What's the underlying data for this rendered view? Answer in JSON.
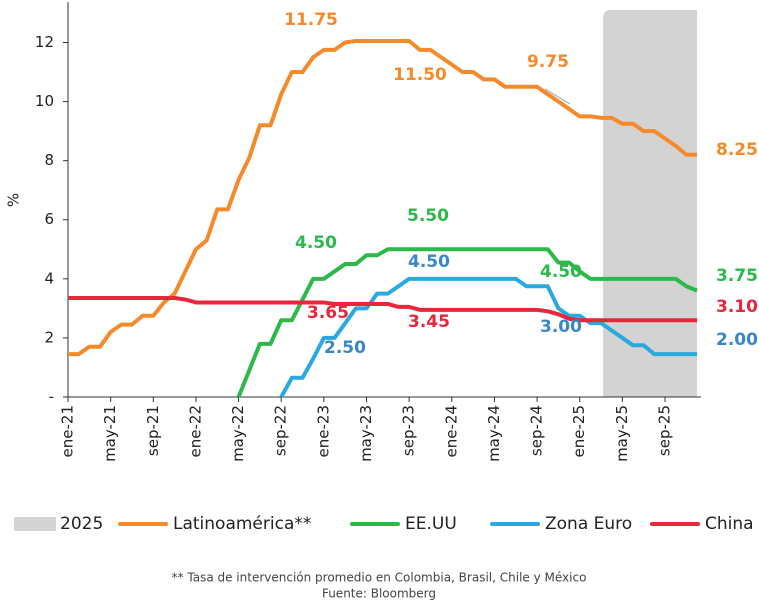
{
  "chart_data": {
    "type": "line",
    "y_label": "%",
    "categories": [
      "ene-21",
      null,
      null,
      null,
      "may-21",
      null,
      null,
      null,
      "sep-21",
      null,
      null,
      null,
      "ene-22",
      null,
      null,
      null,
      "may-22",
      null,
      null,
      null,
      "sep-22",
      null,
      null,
      null,
      "ene-23",
      null,
      null,
      null,
      "may-23",
      null,
      null,
      null,
      "sep-23",
      null,
      null,
      null,
      "ene-24",
      null,
      null,
      null,
      "may-24",
      null,
      null,
      null,
      "sep-24",
      null,
      null,
      null,
      "ene-25",
      null,
      null,
      null,
      "may-25",
      null,
      null,
      null,
      "sep-25",
      null,
      null,
      null
    ],
    "shade": {
      "name": "2025",
      "color": "#d3d3d3",
      "start": 50,
      "end": 59
    },
    "series": [
      {
        "name": "Latinoamérica**",
        "color": "#f58a2a",
        "values": [
          1.45,
          1.45,
          1.7,
          1.7,
          2.2,
          2.45,
          2.45,
          2.75,
          2.75,
          3.2,
          3.5,
          4.25,
          5.0,
          5.3,
          6.35,
          6.35,
          7.35,
          8.1,
          9.2,
          9.2,
          10.25,
          11.0,
          11.0,
          11.5,
          11.75,
          11.75,
          12.0,
          12.05,
          12.05,
          12.05,
          12.05,
          12.05,
          12.05,
          11.75,
          11.75,
          11.5,
          11.25,
          11.0,
          11.0,
          10.75,
          10.75,
          10.5,
          10.5,
          10.5,
          10.5,
          10.25,
          10.0,
          9.75,
          9.5,
          9.5,
          9.45,
          9.45,
          9.25,
          9.25,
          9.0,
          9.0,
          8.75,
          8.5,
          8.2,
          8.2
        ]
      },
      {
        "name": "EE.UU",
        "color": "#2db84b",
        "values": [
          null,
          null,
          null,
          null,
          null,
          null,
          null,
          null,
          null,
          null,
          null,
          null,
          null,
          null,
          null,
          null,
          0,
          0.9,
          1.8,
          1.8,
          2.6,
          2.6,
          3.3,
          4.0,
          4.0,
          4.25,
          4.5,
          4.5,
          4.8,
          4.8,
          5.0,
          5.0,
          5.0,
          5.0,
          5.0,
          5.0,
          5.0,
          5.0,
          5.0,
          5.0,
          5.0,
          5.0,
          5.0,
          5.0,
          5.0,
          5.0,
          4.55,
          4.55,
          4.25,
          4.0,
          4.0,
          4.0,
          4.0,
          4.0,
          4.0,
          4.0,
          4.0,
          4.0,
          3.75,
          3.6
        ]
      },
      {
        "name": "Zona Euro",
        "color": "#2aa8e0",
        "values": [
          null,
          null,
          null,
          null,
          null,
          null,
          null,
          null,
          null,
          null,
          null,
          null,
          null,
          null,
          null,
          null,
          null,
          null,
          null,
          null,
          0,
          0.65,
          0.65,
          1.3,
          2.0,
          2.0,
          2.5,
          3.0,
          3.0,
          3.5,
          3.5,
          3.75,
          4.0,
          4.0,
          4.0,
          4.0,
          4.0,
          4.0,
          4.0,
          4.0,
          4.0,
          4.0,
          4.0,
          3.75,
          3.75,
          3.75,
          3.0,
          2.75,
          2.75,
          2.5,
          2.5,
          2.25,
          2.0,
          1.75,
          1.75,
          1.45,
          1.45,
          1.45,
          1.45,
          1.45
        ]
      },
      {
        "name": "China",
        "color": "#e8263c",
        "values": [
          3.35,
          3.35,
          3.35,
          3.35,
          3.35,
          3.35,
          3.35,
          3.35,
          3.35,
          3.35,
          3.35,
          3.3,
          3.2,
          3.2,
          3.2,
          3.2,
          3.2,
          3.2,
          3.2,
          3.2,
          3.2,
          3.2,
          3.2,
          3.2,
          3.2,
          3.15,
          3.15,
          3.15,
          3.15,
          3.15,
          3.15,
          3.05,
          3.05,
          2.95,
          2.95,
          2.95,
          2.95,
          2.95,
          2.95,
          2.95,
          2.95,
          2.95,
          2.95,
          2.95,
          2.95,
          2.9,
          2.8,
          2.65,
          2.6,
          2.6,
          2.6,
          2.6,
          2.6,
          2.6,
          2.6,
          2.6,
          2.6,
          2.6,
          2.6,
          2.6
        ]
      }
    ],
    "annotations": [
      {
        "text": "11.75",
        "color": "#f58a2a"
      },
      {
        "text": "11.50",
        "color": "#f58a2a"
      },
      {
        "text": "9.75",
        "color": "#f58a2a"
      },
      {
        "text": "8.25",
        "color": "#f58a2a"
      },
      {
        "text": "5.50",
        "color": "#2db84b"
      },
      {
        "text": "4.50",
        "color": "#2db84b"
      },
      {
        "text": "4.50",
        "color": "#3a87c8"
      },
      {
        "text": "4.50",
        "color": "#2db84b"
      },
      {
        "text": "3.75",
        "color": "#2db84b"
      },
      {
        "text": "3.65",
        "color": "#e8263c"
      },
      {
        "text": "3.45",
        "color": "#e8263c"
      },
      {
        "text": "3.10",
        "color": "#e8263c"
      },
      {
        "text": "3.00",
        "color": "#3a87c8"
      },
      {
        "text": "2.50",
        "color": "#3a87c8"
      },
      {
        "text": "2.00",
        "color": "#3a87c8"
      }
    ],
    "ylim": [
      0,
      13.1
    ],
    "yticks": [
      {
        "value": 0,
        "label": "-"
      },
      2,
      4,
      6,
      8,
      10,
      12
    ],
    "footnotes": [
      "** Tasa de intervención promedio en Colombia, Brasil, Chile y México",
      "Fuente: Bloomberg"
    ]
  }
}
